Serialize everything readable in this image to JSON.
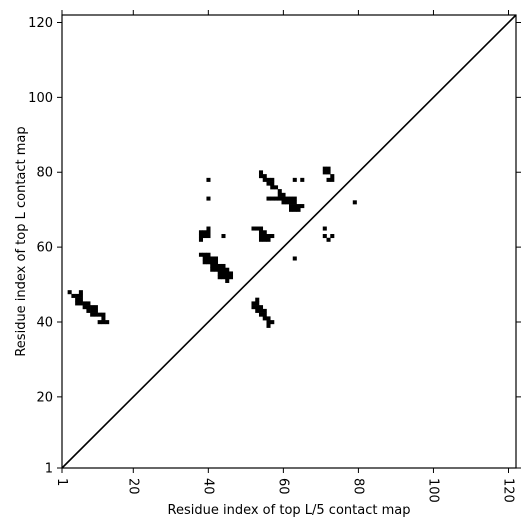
{
  "chart_data": {
    "type": "heatmap",
    "title": "",
    "xlabel": "Residue index of top L/5 contact map",
    "ylabel": "Residue index of top L contact map",
    "xlim": [
      1,
      122
    ],
    "ylim": [
      1,
      122
    ],
    "x_ticks": [
      "1",
      "20",
      "40",
      "60",
      "80",
      "100",
      "120"
    ],
    "y_ticks": [
      "1",
      "20",
      "40",
      "60",
      "80",
      "100",
      "120"
    ],
    "diagonal": true,
    "grid": false,
    "contact_color": "#000000",
    "cells": [
      [
        3,
        48
      ],
      [
        4,
        47
      ],
      [
        5,
        47
      ],
      [
        6,
        47
      ],
      [
        6,
        48
      ],
      [
        5,
        46
      ],
      [
        6,
        46
      ],
      [
        5,
        45
      ],
      [
        6,
        45
      ],
      [
        7,
        45
      ],
      [
        8,
        45
      ],
      [
        7,
        44
      ],
      [
        8,
        44
      ],
      [
        9,
        44
      ],
      [
        10,
        44
      ],
      [
        8,
        43
      ],
      [
        9,
        43
      ],
      [
        10,
        43
      ],
      [
        9,
        42
      ],
      [
        10,
        42
      ],
      [
        11,
        42
      ],
      [
        12,
        42
      ],
      [
        12,
        41
      ],
      [
        11,
        40
      ],
      [
        12,
        40
      ],
      [
        13,
        40
      ],
      [
        38,
        58
      ],
      [
        39,
        58
      ],
      [
        40,
        58
      ],
      [
        39,
        57
      ],
      [
        40,
        57
      ],
      [
        41,
        57
      ],
      [
        42,
        57
      ],
      [
        39,
        56
      ],
      [
        40,
        56
      ],
      [
        41,
        56
      ],
      [
        42,
        56
      ],
      [
        41,
        55
      ],
      [
        42,
        55
      ],
      [
        43,
        55
      ],
      [
        44,
        55
      ],
      [
        41,
        54
      ],
      [
        42,
        54
      ],
      [
        43,
        54
      ],
      [
        44,
        54
      ],
      [
        45,
        54
      ],
      [
        43,
        53
      ],
      [
        44,
        53
      ],
      [
        45,
        53
      ],
      [
        46,
        53
      ],
      [
        43,
        52
      ],
      [
        44,
        52
      ],
      [
        45,
        52
      ],
      [
        46,
        52
      ],
      [
        45,
        51
      ],
      [
        38,
        64
      ],
      [
        39,
        64
      ],
      [
        40,
        64
      ],
      [
        40,
        65
      ],
      [
        38,
        63
      ],
      [
        39,
        63
      ],
      [
        40,
        63
      ],
      [
        38,
        62
      ],
      [
        40,
        78
      ],
      [
        40,
        73
      ],
      [
        44,
        63
      ],
      [
        52,
        65
      ],
      [
        53,
        65
      ],
      [
        54,
        65
      ],
      [
        54,
        64
      ],
      [
        55,
        64
      ],
      [
        54,
        63
      ],
      [
        55,
        63
      ],
      [
        56,
        63
      ],
      [
        57,
        63
      ],
      [
        54,
        62
      ],
      [
        55,
        62
      ],
      [
        56,
        62
      ],
      [
        54,
        80
      ],
      [
        54,
        79
      ],
      [
        55,
        79
      ],
      [
        55,
        78
      ],
      [
        56,
        78
      ],
      [
        57,
        78
      ],
      [
        56,
        77
      ],
      [
        57,
        77
      ],
      [
        57,
        76
      ],
      [
        58,
        76
      ],
      [
        59,
        75
      ],
      [
        59,
        74
      ],
      [
        60,
        74
      ],
      [
        56,
        73
      ],
      [
        57,
        73
      ],
      [
        58,
        73
      ],
      [
        59,
        73
      ],
      [
        60,
        73
      ],
      [
        61,
        73
      ],
      [
        62,
        73
      ],
      [
        63,
        73
      ],
      [
        60,
        72
      ],
      [
        61,
        72
      ],
      [
        62,
        72
      ],
      [
        63,
        72
      ],
      [
        62,
        71
      ],
      [
        63,
        71
      ],
      [
        64,
        71
      ],
      [
        65,
        71
      ],
      [
        62,
        70
      ],
      [
        63,
        70
      ],
      [
        64,
        70
      ],
      [
        63,
        78
      ],
      [
        65,
        78
      ],
      [
        63,
        57
      ],
      [
        53,
        46
      ],
      [
        52,
        45
      ],
      [
        53,
        45
      ],
      [
        52,
        44
      ],
      [
        53,
        44
      ],
      [
        54,
        44
      ],
      [
        53,
        43
      ],
      [
        54,
        43
      ],
      [
        55,
        43
      ],
      [
        54,
        42
      ],
      [
        55,
        42
      ],
      [
        55,
        41
      ],
      [
        56,
        41
      ],
      [
        56,
        40
      ],
      [
        57,
        40
      ],
      [
        56,
        39
      ],
      [
        71,
        81
      ],
      [
        72,
        81
      ],
      [
        71,
        80
      ],
      [
        72,
        80
      ],
      [
        73,
        79
      ],
      [
        72,
        78
      ],
      [
        73,
        78
      ],
      [
        71,
        65
      ],
      [
        71,
        63
      ],
      [
        72,
        62
      ],
      [
        73,
        63
      ],
      [
        79,
        72
      ]
    ]
  }
}
